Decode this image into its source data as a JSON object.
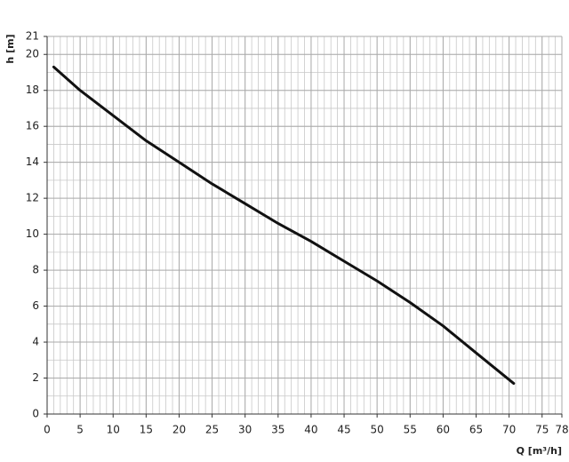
{
  "chart_data": {
    "type": "line",
    "x_label": "Q [m³/h]",
    "y_label": "h [m]",
    "x": [
      1,
      5,
      10,
      15,
      20,
      25,
      30,
      35,
      40,
      45,
      50,
      55,
      60,
      65,
      70.7
    ],
    "values": [
      19.3,
      18.0,
      16.6,
      15.2,
      14.0,
      12.8,
      11.7,
      10.6,
      9.6,
      8.5,
      7.4,
      6.2,
      4.9,
      3.4,
      1.7
    ],
    "color": "#111111",
    "xlim": [
      0,
      78
    ],
    "xticks": [
      0,
      5,
      10,
      15,
      20,
      25,
      30,
      35,
      40,
      45,
      50,
      55,
      60,
      65,
      70,
      75,
      78
    ],
    "ylim": [
      0,
      21
    ],
    "yticks": [
      0,
      2,
      4,
      6,
      8,
      10,
      12,
      14,
      16,
      18,
      20,
      21
    ],
    "grid": true
  }
}
